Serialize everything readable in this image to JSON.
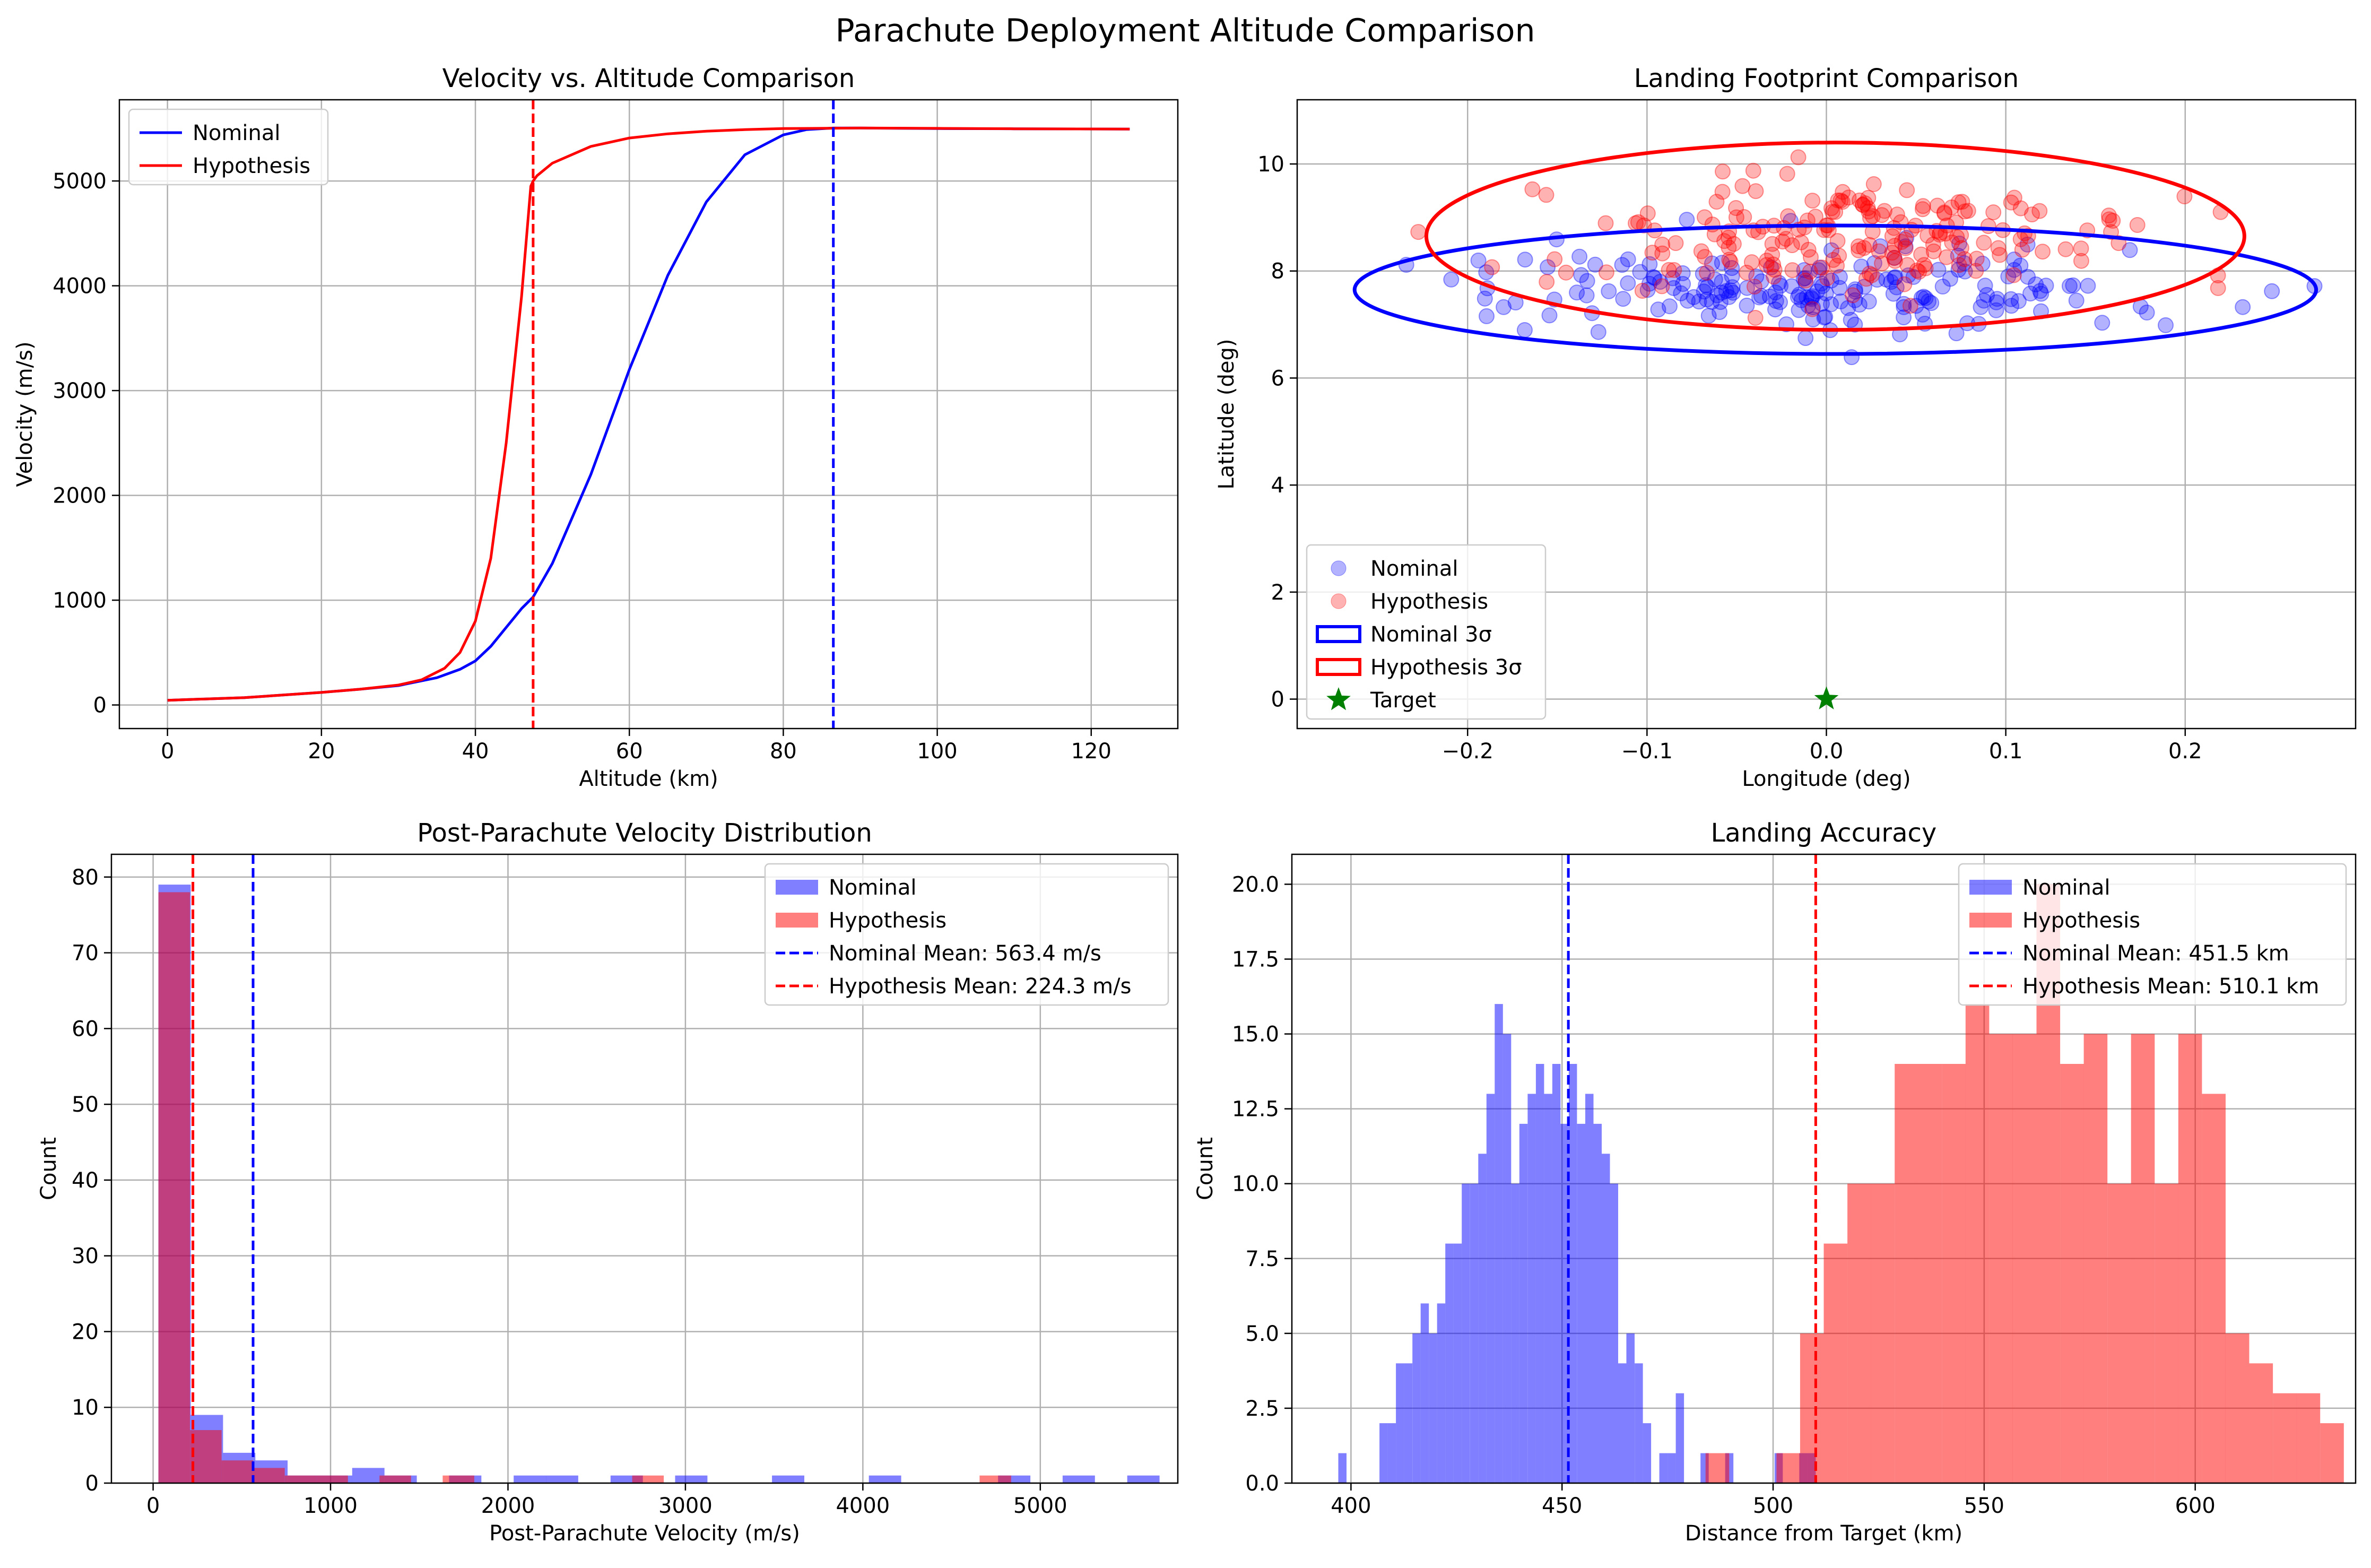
{
  "figure": {
    "title": "Parachute Deployment Altitude Comparison"
  },
  "colors": {
    "nominal": "#0000ff",
    "hypothesis": "#ff0000",
    "target": "#008000",
    "grid": "#b0b0b0"
  },
  "chart_data": [
    {
      "type": "line",
      "title": "Velocity vs. Altitude Comparison",
      "xlabel": "Altitude (km)",
      "ylabel": "Velocity (m/s)",
      "xlim": [
        -6.25,
        131.25
      ],
      "ylim": [
        -225,
        5775
      ],
      "xticks": [
        0,
        20,
        40,
        60,
        80,
        100,
        120
      ],
      "yticks": [
        0,
        1000,
        2000,
        3000,
        4000,
        5000
      ],
      "grid": true,
      "legend_position": "upper left",
      "series": [
        {
          "name": "Nominal",
          "color": "#0000ff",
          "x": [
            0,
            10,
            20,
            25,
            30,
            35,
            38,
            40,
            42,
            44,
            46,
            47.5,
            50,
            55,
            60,
            65,
            70,
            75,
            80,
            83,
            86.5,
            90,
            100,
            110,
            125
          ],
          "y": [
            45,
            70,
            120,
            150,
            185,
            260,
            340,
            420,
            560,
            740,
            920,
            1030,
            1350,
            2200,
            3200,
            4100,
            4800,
            5250,
            5440,
            5490,
            5505,
            5505,
            5500,
            5498,
            5495
          ]
        },
        {
          "name": "Hypothesis",
          "color": "#ff0000",
          "x": [
            0,
            10,
            20,
            25,
            30,
            33,
            36,
            38,
            40,
            42,
            44,
            46,
            47.2,
            47.5,
            48,
            50,
            55,
            60,
            65,
            70,
            75,
            80,
            90,
            100,
            110,
            125
          ],
          "y": [
            45,
            70,
            120,
            150,
            190,
            240,
            350,
            500,
            800,
            1400,
            2500,
            3900,
            4950,
            5000,
            5050,
            5170,
            5330,
            5410,
            5450,
            5475,
            5490,
            5500,
            5505,
            5502,
            5498,
            5495
          ]
        }
      ],
      "vlines": [
        {
          "x": 86.5,
          "color": "#0000ff",
          "style": "dashed"
        },
        {
          "x": 47.5,
          "color": "#ff0000",
          "style": "dashed"
        }
      ]
    },
    {
      "type": "scatter",
      "title": "Landing Footprint Comparison",
      "xlabel": "Longitude (deg)",
      "ylabel": "Latitude (deg)",
      "xlim": [
        -0.295,
        0.295
      ],
      "ylim": [
        -0.55,
        11.2
      ],
      "xticks": [
        -0.2,
        -0.1,
        0.0,
        0.1,
        0.2
      ],
      "xtick_labels": [
        "−0.2",
        "−0.1",
        "0.0",
        "0.1",
        "0.2"
      ],
      "yticks": [
        0,
        2,
        4,
        6,
        8,
        10
      ],
      "grid": true,
      "legend_position": "lower left",
      "point_count_each": 200,
      "series": [
        {
          "name": "Nominal",
          "color": "#0000ff",
          "alpha": 0.3,
          "center": [
            0.0,
            7.65
          ],
          "spread": [
            0.09,
            0.4
          ],
          "seed": 7
        },
        {
          "name": "Hypothesis",
          "color": "#ff0000",
          "alpha": 0.3,
          "center": [
            0.0,
            8.65
          ],
          "spread": [
            0.085,
            0.55
          ],
          "seed": 13
        }
      ],
      "ellipses": [
        {
          "name": "Nominal 3σ",
          "color": "#0000ff",
          "center": [
            0.005,
            7.65
          ],
          "radii": [
            0.268,
            1.2
          ]
        },
        {
          "name": "Hypothesis 3σ",
          "color": "#ff0000",
          "center": [
            0.005,
            8.65
          ],
          "radii": [
            0.228,
            1.75
          ]
        }
      ],
      "markers": [
        {
          "name": "Target",
          "color": "#008000",
          "shape": "star",
          "x": 0.0,
          "y": 0.0
        }
      ]
    },
    {
      "type": "bar",
      "subtype": "histogram",
      "title": "Post-Parachute Velocity Distribution",
      "xlabel": "Post-Parachute Velocity (m/s)",
      "ylabel": "Count",
      "xlim": [
        -235,
        5775
      ],
      "ylim": [
        0,
        83
      ],
      "xticks": [
        0,
        1000,
        2000,
        3000,
        4000,
        5000
      ],
      "yticks": [
        0,
        10,
        20,
        30,
        40,
        50,
        60,
        70,
        80
      ],
      "grid": true,
      "legend_position": "upper right",
      "series": [
        {
          "name": "Nominal",
          "color": "#0000ff",
          "alpha": 0.5,
          "bin_start": 30,
          "bin_width": 182,
          "counts": [
            79,
            9,
            4,
            3,
            1,
            1,
            2,
            1,
            0,
            1,
            0,
            1,
            1,
            0,
            1,
            0,
            1,
            0,
            0,
            1,
            0,
            0,
            1,
            0,
            0,
            0,
            1,
            0,
            1,
            0,
            1
          ]
        },
        {
          "name": "Hypothesis",
          "color": "#ff0000",
          "alpha": 0.5,
          "bin_start": 30,
          "bin_width": 178,
          "counts": [
            78,
            7,
            3,
            2,
            1,
            1,
            0,
            1,
            0,
            1,
            0,
            0,
            0,
            0,
            0,
            1,
            0,
            0,
            0,
            0,
            0,
            0,
            0,
            0,
            0,
            0,
            1
          ]
        }
      ],
      "vlines": [
        {
          "name": "Nominal Mean: 563.4 m/s",
          "x": 563.4,
          "color": "#0000ff",
          "style": "dashed"
        },
        {
          "name": "Hypothesis Mean: 224.3 m/s",
          "x": 224.3,
          "color": "#ff0000",
          "style": "dashed"
        }
      ]
    },
    {
      "type": "bar",
      "subtype": "histogram",
      "title": "Landing Accuracy",
      "xlabel": "Distance from Target (km)",
      "ylabel": "Count",
      "xlim": [
        386,
        638
      ],
      "ylim": [
        0,
        21
      ],
      "xticks": [
        400,
        450,
        500,
        550,
        600
      ],
      "yticks": [
        0.0,
        2.5,
        5.0,
        7.5,
        10.0,
        12.5,
        15.0,
        17.5,
        20.0
      ],
      "ytick_labels": [
        "0.0",
        "2.5",
        "5.0",
        "7.5",
        "10.0",
        "12.5",
        "15.0",
        "17.5",
        "20.0"
      ],
      "grid": true,
      "legend_position": "upper right",
      "series": [
        {
          "name": "Nominal",
          "color": "#0000ff",
          "alpha": 0.5,
          "bin_start": 397,
          "bin_width": 1.95,
          "counts": [
            1,
            0,
            0,
            0,
            0,
            2,
            2,
            4,
            4,
            5,
            6,
            5,
            6,
            8,
            8,
            10,
            10,
            11,
            13,
            16,
            15,
            10,
            12,
            13,
            14,
            13,
            14,
            12,
            14,
            12,
            13,
            12,
            11,
            10,
            4,
            5,
            4,
            2,
            0,
            1,
            1,
            3,
            0,
            0,
            1,
            0,
            0,
            1,
            0,
            0,
            0,
            0,
            0,
            1,
            0,
            0,
            1,
            1
          ]
        },
        {
          "name": "Hypothesis",
          "color": "#ff0000",
          "alpha": 0.5,
          "bin_start": 400,
          "bin_width": 5.6,
          "counts": [
            0,
            0,
            0,
            0,
            0,
            0,
            0,
            0,
            0,
            0,
            0,
            0,
            0,
            0,
            0,
            1,
            0,
            0,
            1,
            5,
            8,
            10,
            10,
            14,
            14,
            14,
            16,
            15,
            15,
            20,
            14,
            15,
            10,
            15,
            10,
            15,
            13,
            5,
            4,
            3,
            3,
            2,
            0,
            1,
            2,
            0,
            2
          ]
        }
      ],
      "vlines": [
        {
          "name": "Nominal Mean: 451.5 km",
          "x": 451.5,
          "color": "#0000ff",
          "style": "dashed"
        },
        {
          "name": "Hypothesis Mean: 510.1 km",
          "x": 510.1,
          "color": "#ff0000",
          "style": "dashed"
        }
      ]
    }
  ]
}
